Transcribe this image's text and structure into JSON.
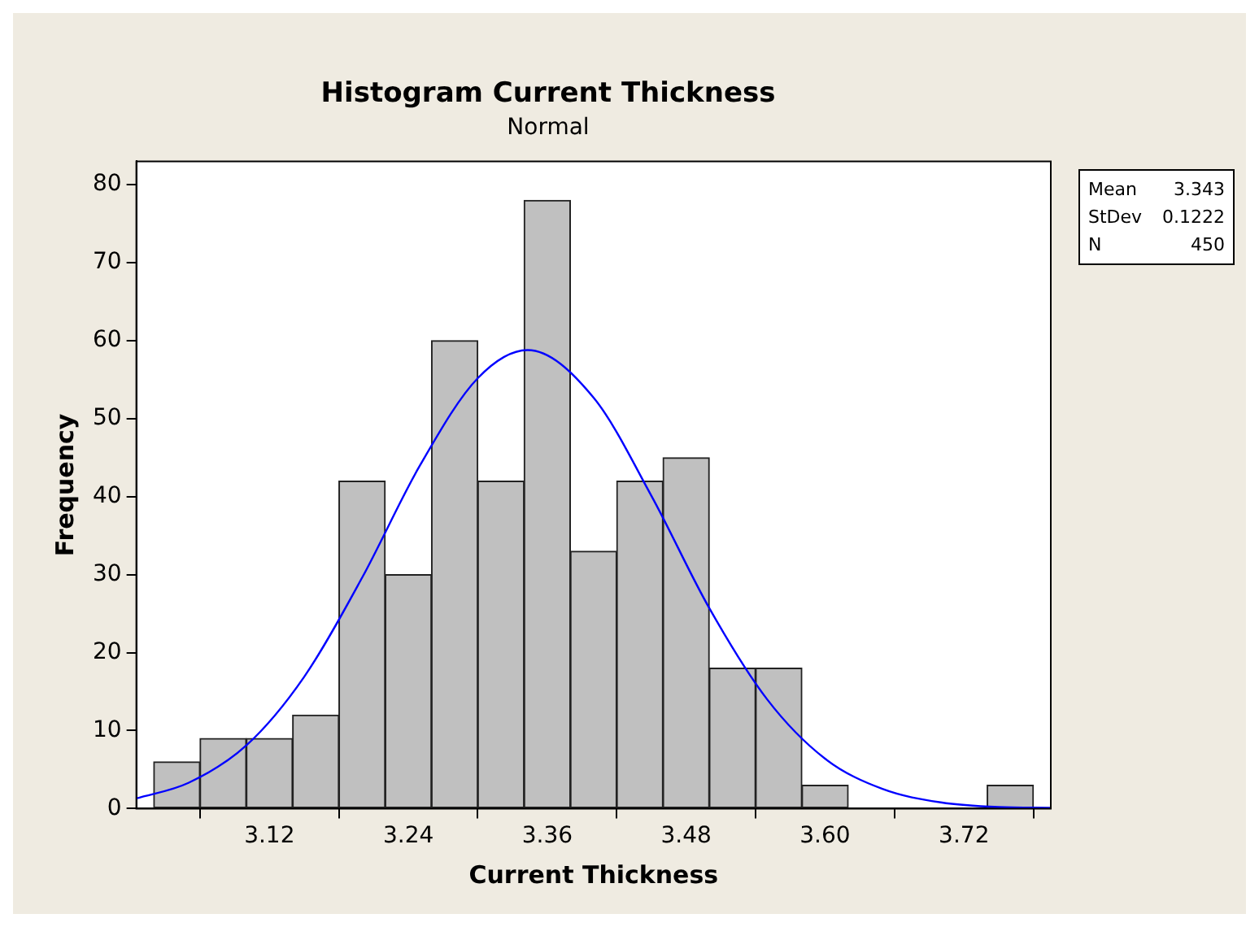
{
  "chart_data": {
    "type": "histogram",
    "title": "Histogram Current Thickness",
    "subtitle": "Normal",
    "xlabel": "Current Thickness",
    "ylabel": "Frequency",
    "bins": [
      3.02,
      3.06,
      3.1,
      3.14,
      3.18,
      3.22,
      3.26,
      3.3,
      3.34,
      3.38,
      3.42,
      3.46,
      3.5,
      3.54,
      3.58,
      3.62,
      3.66,
      3.7,
      3.74,
      3.78
    ],
    "values": [
      6,
      9,
      9,
      12,
      42,
      30,
      60,
      42,
      78,
      33,
      42,
      45,
      18,
      18,
      3,
      0,
      0,
      0,
      3
    ],
    "color": "#c0c0c0",
    "series": [
      {
        "type": "line",
        "color": "#0000ff",
        "x": [
          3.005,
          3.05,
          3.1,
          3.15,
          3.2,
          3.25,
          3.3,
          3.343,
          3.4,
          3.45,
          3.5,
          3.55,
          3.6,
          3.65,
          3.7,
          3.75,
          3.795
        ],
        "values": [
          1.3,
          3.3,
          8.1,
          16.9,
          29.6,
          44.0,
          55.2,
          58.8,
          52.7,
          40.1,
          25.7,
          14.0,
          6.4,
          2.5,
          0.8,
          0.2,
          0.1
        ]
      }
    ],
    "xlim": [
      3.005,
      3.795
    ],
    "xticks": [
      3.12,
      3.24,
      3.36,
      3.48,
      {
        "value": 3.6,
        "label": "3.60"
      },
      3.72
    ],
    "ylim": [
      0,
      83
    ],
    "yticks": [
      0,
      10,
      20,
      30,
      40,
      50,
      60,
      70,
      80
    ],
    "grid": false,
    "legend": false,
    "marker": "none",
    "line_style": "solid",
    "annotations": [
      "Mean 3.343",
      "StDev 0.1222",
      "N 450"
    ]
  }
}
